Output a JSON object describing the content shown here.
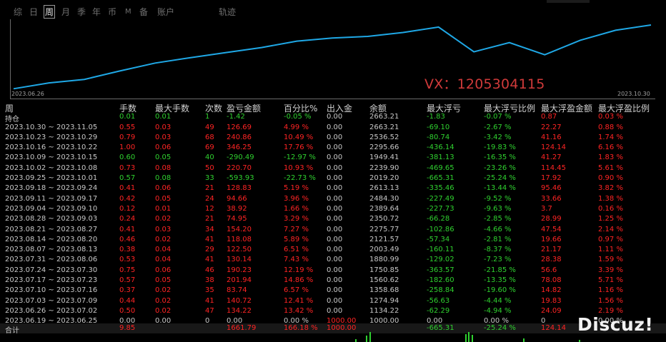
{
  "tabs": [
    {
      "label": "综"
    },
    {
      "label": "日"
    },
    {
      "label": "周",
      "active": true
    },
    {
      "label": "月"
    },
    {
      "label": "季"
    },
    {
      "label": "年"
    },
    {
      "label": "币"
    },
    {
      "label": "M"
    },
    {
      "label": "备"
    },
    {
      "label": "账户"
    }
  ],
  "trajectory_label": "轨迹",
  "chart": {
    "start_date": "2023.06.26",
    "end_date": "2023.10.30",
    "equity": [
      1134,
      1275,
      1358,
      1561,
      1751,
      1881,
      2003,
      2122,
      2276,
      2351,
      2389,
      2484,
      2613,
      2019,
      2240,
      1949,
      2296,
      2537,
      2663
    ],
    "line_color": "#1fa8e6"
  },
  "watermark": "VX：1205304115",
  "headers": [
    "周",
    "手数",
    "最大手数",
    "次数",
    "盈亏金额",
    "百分比%",
    "出入金",
    "余额",
    "最大浮亏",
    "最大浮亏比例",
    "最大浮盈金额",
    "最大浮盈比例"
  ],
  "holding": {
    "label": "持仓",
    "lots": "0.01",
    "max_lots": "0.01",
    "count": "1",
    "pnl": "-1.42",
    "pct": "-0.05 %",
    "flow": "0.00",
    "balance": "2663.21",
    "max_dd": "-1.83",
    "max_dd_pct": "-0.07 %",
    "max_fp": "0.87",
    "max_fp_pct": "0.03 %",
    "sign": "g"
  },
  "rows": [
    {
      "period": "2023.10.30 ~ 2023.11.05",
      "lots": "0.55",
      "max_lots": "0.03",
      "count": "49",
      "pnl": "126.69",
      "pct": "4.99 %",
      "flow": "0.00",
      "balance": "2663.21",
      "max_dd": "-69.10",
      "max_dd_pct": "-2.67 %",
      "max_fp": "22.27",
      "max_fp_pct": "0.88 %",
      "sign": "r"
    },
    {
      "period": "2023.10.23 ~ 2023.10.29",
      "lots": "0.79",
      "max_lots": "0.03",
      "count": "68",
      "pnl": "240.86",
      "pct": "10.49 %",
      "flow": "0.00",
      "balance": "2536.52",
      "max_dd": "-80.74",
      "max_dd_pct": "-3.42 %",
      "max_fp": "41.16",
      "max_fp_pct": "1.74 %",
      "sign": "r"
    },
    {
      "period": "2023.10.16 ~ 2023.10.22",
      "lots": "1.00",
      "max_lots": "0.06",
      "count": "69",
      "pnl": "346.25",
      "pct": "17.76 %",
      "flow": "0.00",
      "balance": "2295.66",
      "max_dd": "-436.14",
      "max_dd_pct": "-19.83 %",
      "max_fp": "124.14",
      "max_fp_pct": "6.16 %",
      "sign": "r"
    },
    {
      "period": "2023.10.09 ~ 2023.10.15",
      "lots": "0.60",
      "max_lots": "0.05",
      "count": "40",
      "pnl": "-290.49",
      "pct": "-12.97 %",
      "flow": "0.00",
      "balance": "1949.41",
      "max_dd": "-381.13",
      "max_dd_pct": "-16.35 %",
      "max_fp": "41.27",
      "max_fp_pct": "1.83 %",
      "sign": "g"
    },
    {
      "period": "2023.10.02 ~ 2023.10.08",
      "lots": "0.73",
      "max_lots": "0.08",
      "count": "50",
      "pnl": "220.70",
      "pct": "10.93 %",
      "flow": "0.00",
      "balance": "2239.90",
      "max_dd": "-469.65",
      "max_dd_pct": "-23.26 %",
      "max_fp": "114.45",
      "max_fp_pct": "5.61 %",
      "sign": "r"
    },
    {
      "period": "2023.09.25 ~ 2023.10.01",
      "lots": "0.57",
      "max_lots": "0.08",
      "count": "33",
      "pnl": "-593.93",
      "pct": "-22.73 %",
      "flow": "0.00",
      "balance": "2019.20",
      "max_dd": "-665.31",
      "max_dd_pct": "-25.24 %",
      "max_fp": "17.92",
      "max_fp_pct": "0.90 %",
      "sign": "g"
    },
    {
      "period": "2023.09.18 ~ 2023.09.24",
      "lots": "0.41",
      "max_lots": "0.06",
      "count": "21",
      "pnl": "128.83",
      "pct": "5.19 %",
      "flow": "0.00",
      "balance": "2613.13",
      "max_dd": "-335.46",
      "max_dd_pct": "-13.44 %",
      "max_fp": "95.46",
      "max_fp_pct": "3.82 %",
      "sign": "r"
    },
    {
      "period": "2023.09.11 ~ 2023.09.17",
      "lots": "0.42",
      "max_lots": "0.05",
      "count": "24",
      "pnl": "94.66",
      "pct": "3.96 %",
      "flow": "0.00",
      "balance": "2484.30",
      "max_dd": "-227.49",
      "max_dd_pct": "-9.52 %",
      "max_fp": "33.66",
      "max_fp_pct": "1.38 %",
      "sign": "r"
    },
    {
      "period": "2023.09.04 ~ 2023.09.10",
      "lots": "0.12",
      "max_lots": "0.01",
      "count": "12",
      "pnl": "38.92",
      "pct": "1.66 %",
      "flow": "0.00",
      "balance": "2389.64",
      "max_dd": "-227.73",
      "max_dd_pct": "-9.63 %",
      "max_fp": "3.7",
      "max_fp_pct": "0.16 %",
      "sign": "r"
    },
    {
      "period": "2023.08.28 ~ 2023.09.03",
      "lots": "0.24",
      "max_lots": "0.02",
      "count": "21",
      "pnl": "74.95",
      "pct": "3.29 %",
      "flow": "0.00",
      "balance": "2350.72",
      "max_dd": "-66.28",
      "max_dd_pct": "-2.85 %",
      "max_fp": "28.99",
      "max_fp_pct": "1.25 %",
      "sign": "r"
    },
    {
      "period": "2023.08.21 ~ 2023.08.27",
      "lots": "0.41",
      "max_lots": "0.03",
      "count": "34",
      "pnl": "154.20",
      "pct": "7.27 %",
      "flow": "0.00",
      "balance": "2275.77",
      "max_dd": "-102.86",
      "max_dd_pct": "-4.66 %",
      "max_fp": "47.54",
      "max_fp_pct": "2.14 %",
      "sign": "r"
    },
    {
      "period": "2023.08.14 ~ 2023.08.20",
      "lots": "0.46",
      "max_lots": "0.02",
      "count": "41",
      "pnl": "118.08",
      "pct": "5.89 %",
      "flow": "0.00",
      "balance": "2121.57",
      "max_dd": "-57.34",
      "max_dd_pct": "-2.81 %",
      "max_fp": "19.66",
      "max_fp_pct": "0.97 %",
      "sign": "r"
    },
    {
      "period": "2023.08.07 ~ 2023.08.13",
      "lots": "0.38",
      "max_lots": "0.04",
      "count": "29",
      "pnl": "122.50",
      "pct": "6.51 %",
      "flow": "0.00",
      "balance": "2003.49",
      "max_dd": "-160.11",
      "max_dd_pct": "-8.37 %",
      "max_fp": "21.17",
      "max_fp_pct": "1.11 %",
      "sign": "r"
    },
    {
      "period": "2023.07.31 ~ 2023.08.06",
      "lots": "0.53",
      "max_lots": "0.04",
      "count": "41",
      "pnl": "130.14",
      "pct": "7.43 %",
      "flow": "0.00",
      "balance": "1880.99",
      "max_dd": "-129.02",
      "max_dd_pct": "-7.23 %",
      "max_fp": "28.38",
      "max_fp_pct": "1.59 %",
      "sign": "r"
    },
    {
      "period": "2023.07.24 ~ 2023.07.30",
      "lots": "0.75",
      "max_lots": "0.06",
      "count": "46",
      "pnl": "190.23",
      "pct": "12.19 %",
      "flow": "0.00",
      "balance": "1750.85",
      "max_dd": "-363.57",
      "max_dd_pct": "-21.85 %",
      "max_fp": "56.6",
      "max_fp_pct": "3.39 %",
      "sign": "r"
    },
    {
      "period": "2023.07.17 ~ 2023.07.23",
      "lots": "0.57",
      "max_lots": "0.05",
      "count": "38",
      "pnl": "201.94",
      "pct": "14.86 %",
      "flow": "0.00",
      "balance": "1560.62",
      "max_dd": "-182.60",
      "max_dd_pct": "-13.35 %",
      "max_fp": "78.08",
      "max_fp_pct": "5.71 %",
      "sign": "r"
    },
    {
      "period": "2023.07.10 ~ 2023.07.16",
      "lots": "0.37",
      "max_lots": "0.02",
      "count": "35",
      "pnl": "83.74",
      "pct": "6.57 %",
      "flow": "0.00",
      "balance": "1358.68",
      "max_dd": "-258.84",
      "max_dd_pct": "-19.60 %",
      "max_fp": "14.82",
      "max_fp_pct": "1.16 %",
      "sign": "r"
    },
    {
      "period": "2023.07.03 ~ 2023.07.09",
      "lots": "0.44",
      "max_lots": "0.02",
      "count": "41",
      "pnl": "140.72",
      "pct": "12.41 %",
      "flow": "0.00",
      "balance": "1274.94",
      "max_dd": "-56.63",
      "max_dd_pct": "-4.44 %",
      "max_fp": "19.83",
      "max_fp_pct": "1.56 %",
      "sign": "r"
    },
    {
      "period": "2023.06.26 ~ 2023.07.02",
      "lots": "0.50",
      "max_lots": "0.02",
      "count": "47",
      "pnl": "134.22",
      "pct": "13.42 %",
      "flow": "0.00",
      "balance": "1134.22",
      "max_dd": "-62.29",
      "max_dd_pct": "-4.94 %",
      "max_fp": "24.09",
      "max_fp_pct": "2.19 %",
      "sign": "r"
    },
    {
      "period": "2023.06.19 ~ 2023.06.25",
      "lots": "0.00",
      "max_lots": "0.00",
      "count": "0",
      "pnl": "0.00",
      "pct": "0.00 %",
      "flow": "1000.00",
      "balance": "1000.00",
      "max_dd": "0.00",
      "max_dd_pct": "0.00 %",
      "max_fp": "0",
      "max_fp_pct": "0.00 %",
      "sign": "w"
    }
  ],
  "total": {
    "label": "合计",
    "lots": "9.85",
    "pnl": "1661.79",
    "pct": "166.18 %",
    "flow": "1000.00",
    "max_dd": "-665.31",
    "max_dd_pct": "-25.24 %",
    "max_fp": "124.14"
  },
  "brand": "Discuz!"
}
